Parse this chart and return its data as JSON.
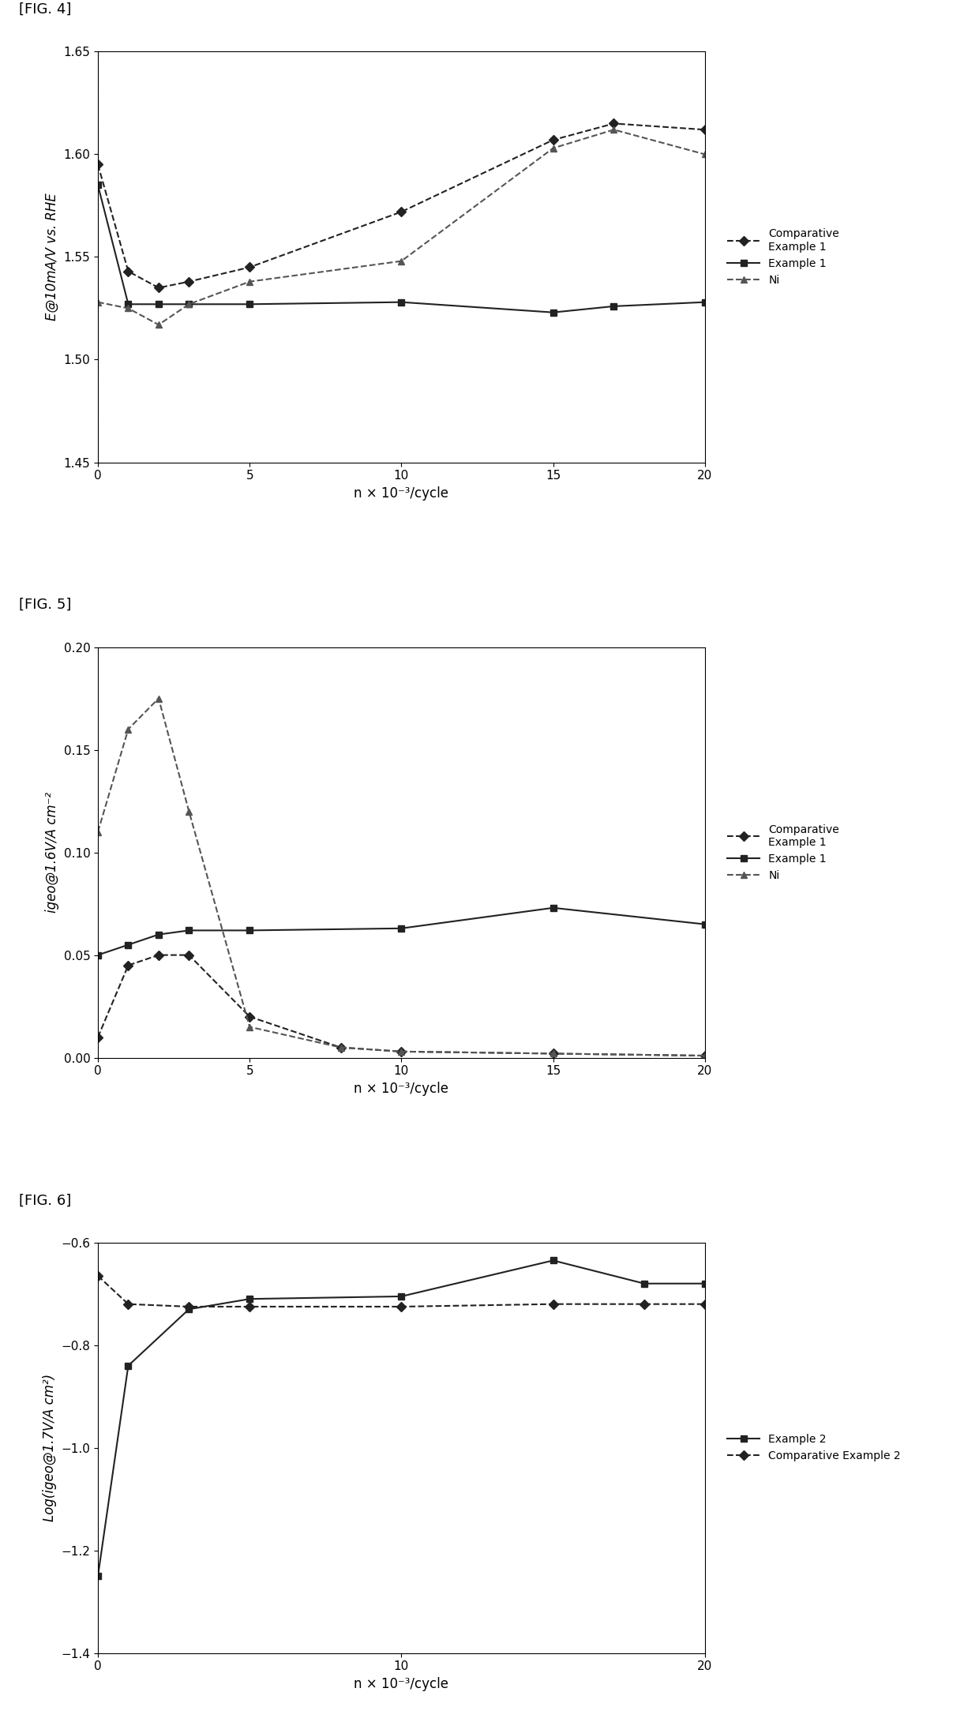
{
  "fig4": {
    "title": "[FIG. 4]",
    "xlabel": "n × 10⁻³/cycle",
    "ylabel": "E@10mA/V vs. RHE",
    "ylim": [
      1.45,
      1.65
    ],
    "yticks": [
      1.45,
      1.5,
      1.55,
      1.6,
      1.65
    ],
    "xlim": [
      0,
      20
    ],
    "xticks": [
      0,
      5,
      10,
      15,
      20
    ],
    "comp_ex1": {
      "x": [
        0,
        1,
        2,
        3,
        5,
        10,
        15,
        17,
        20
      ],
      "y": [
        1.595,
        1.543,
        1.535,
        1.538,
        1.545,
        1.572,
        1.607,
        1.615,
        1.612
      ],
      "label": "Comparative\nExample 1",
      "linestyle": "--",
      "marker": "D",
      "color": "#222222"
    },
    "ex1": {
      "x": [
        0,
        1,
        2,
        3,
        5,
        10,
        15,
        17,
        20
      ],
      "y": [
        1.585,
        1.527,
        1.527,
        1.527,
        1.527,
        1.528,
        1.523,
        1.526,
        1.528
      ],
      "label": "Example 1",
      "linestyle": "-",
      "marker": "s",
      "color": "#222222"
    },
    "ni": {
      "x": [
        0,
        1,
        2,
        3,
        5,
        10,
        15,
        17,
        20
      ],
      "y": [
        1.528,
        1.525,
        1.517,
        1.527,
        1.538,
        1.548,
        1.603,
        1.612,
        1.6
      ],
      "label": "Ni",
      "linestyle": "--",
      "marker": "^",
      "color": "#555555"
    }
  },
  "fig5": {
    "title": "[FIG. 5]",
    "xlabel": "n × 10⁻³/cycle",
    "ylabel": "igeo@1.6V/A cm⁻²",
    "ylim": [
      0,
      0.2
    ],
    "yticks": [
      0.0,
      0.05,
      0.1,
      0.15,
      0.2
    ],
    "xlim": [
      0,
      20
    ],
    "xticks": [
      0,
      5,
      10,
      15,
      20
    ],
    "comp_ex1": {
      "x": [
        0,
        1,
        2,
        3,
        5,
        8,
        10,
        15,
        20
      ],
      "y": [
        0.01,
        0.045,
        0.05,
        0.05,
        0.02,
        0.005,
        0.003,
        0.002,
        0.001
      ],
      "label": "Comparative\nExample 1",
      "linestyle": "--",
      "marker": "D",
      "color": "#222222"
    },
    "ex1": {
      "x": [
        0,
        1,
        2,
        3,
        5,
        10,
        15,
        20
      ],
      "y": [
        0.05,
        0.055,
        0.06,
        0.062,
        0.062,
        0.063,
        0.073,
        0.065
      ],
      "label": "Example 1",
      "linestyle": "-",
      "marker": "s",
      "color": "#222222"
    },
    "ni": {
      "x": [
        0,
        1,
        2,
        3,
        5,
        8,
        10,
        15,
        20
      ],
      "y": [
        0.11,
        0.16,
        0.175,
        0.12,
        0.015,
        0.005,
        0.003,
        0.002,
        0.001
      ],
      "label": "Ni",
      "linestyle": "--",
      "marker": "^",
      "color": "#555555"
    }
  },
  "fig6": {
    "title": "[FIG. 6]",
    "xlabel": "n × 10⁻³/cycle",
    "ylabel": "Log(igeo@1.7V/A cm²)",
    "ylim": [
      -1.4,
      -0.6
    ],
    "yticks": [
      -1.4,
      -1.2,
      -1.0,
      -0.8,
      -0.6
    ],
    "xlim": [
      0,
      20
    ],
    "xticks": [
      0,
      10,
      20
    ],
    "ex2": {
      "x": [
        0,
        1,
        3,
        5,
        10,
        15,
        18,
        20
      ],
      "y": [
        -1.25,
        -0.84,
        -0.73,
        -0.71,
        -0.705,
        -0.635,
        -0.68,
        -0.68
      ],
      "label": "Example 2",
      "linestyle": "-",
      "marker": "s",
      "color": "#222222"
    },
    "comp_ex2": {
      "x": [
        0,
        1,
        3,
        5,
        10,
        15,
        18,
        20
      ],
      "y": [
        -0.665,
        -0.72,
        -0.725,
        -0.725,
        -0.725,
        -0.72,
        -0.72,
        -0.72
      ],
      "label": "Comparative Example 2",
      "linestyle": "--",
      "marker": "D",
      "color": "#222222"
    }
  },
  "background_color": "#ffffff",
  "text_color": "#000000"
}
